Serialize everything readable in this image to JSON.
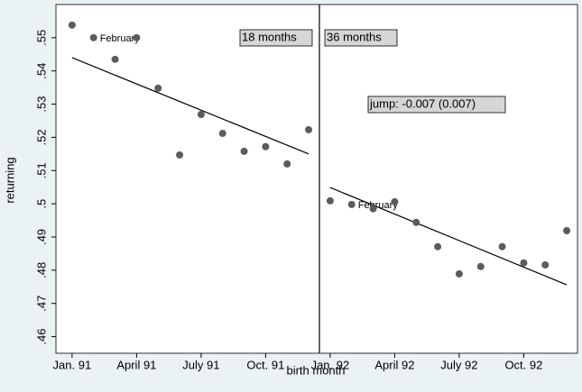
{
  "chart_data": {
    "type": "scatter",
    "x_label": "birth month",
    "y_label": "returning",
    "x": [
      0,
      1,
      2,
      3,
      4,
      5,
      6,
      7,
      8,
      9,
      10,
      11,
      12,
      13,
      14,
      15,
      16,
      17,
      18,
      19,
      20,
      21,
      22,
      23
    ],
    "values": [
      0.5538,
      0.55,
      0.5435,
      0.55,
      0.5348,
      0.5147,
      0.5269,
      0.5212,
      0.5158,
      0.5172,
      0.512,
      0.5223,
      0.5009,
      0.4998,
      0.4985,
      0.5006,
      0.4944,
      0.4871,
      0.4789,
      0.4811,
      0.4871,
      0.4822,
      0.4816,
      0.4919
    ],
    "color": "#5c5c5c",
    "marker_labels": [
      null,
      "February",
      null,
      null,
      null,
      null,
      null,
      null,
      null,
      null,
      null,
      null,
      null,
      "February",
      null,
      null,
      null,
      null,
      null,
      null,
      null,
      null,
      null,
      null
    ],
    "fit_lines": [
      {
        "x": [
          0,
          11
        ],
        "values": [
          0.544,
          0.515
        ],
        "color": "#000000"
      },
      {
        "x": [
          12,
          23
        ],
        "values": [
          0.5049,
          0.4756
        ],
        "color": "#000000"
      }
    ],
    "cutoff_x": 11.5,
    "annotations": [
      "18 months",
      "36 months",
      "jump: -0.007 (0.007)"
    ],
    "xlim": [
      -0.75,
      23.5
    ],
    "ylim": [
      0.455,
      0.56
    ],
    "xticks": [
      {
        "value": 0,
        "label": "Jan. 91"
      },
      {
        "value": 3,
        "label": "April 91"
      },
      {
        "value": 6,
        "label": "July 91"
      },
      {
        "value": 9,
        "label": "Oct. 91"
      },
      {
        "value": 12,
        "label": "Jan. 92"
      },
      {
        "value": 15,
        "label": "April 92"
      },
      {
        "value": 18,
        "label": "July 92"
      },
      {
        "value": 21,
        "label": "Oct. 92"
      }
    ],
    "yticks": [
      {
        "value": 0.46,
        "label": ".46"
      },
      {
        "value": 0.47,
        "label": ".47"
      },
      {
        "value": 0.48,
        "label": ".48"
      },
      {
        "value": 0.49,
        "label": ".49"
      },
      {
        "value": 0.5,
        "label": ".5"
      },
      {
        "value": 0.51,
        "label": ".51"
      },
      {
        "value": 0.52,
        "label": ".52"
      },
      {
        "value": 0.53,
        "label": ".53"
      },
      {
        "value": 0.54,
        "label": ".54"
      },
      {
        "value": 0.55,
        "label": ".55"
      }
    ]
  }
}
